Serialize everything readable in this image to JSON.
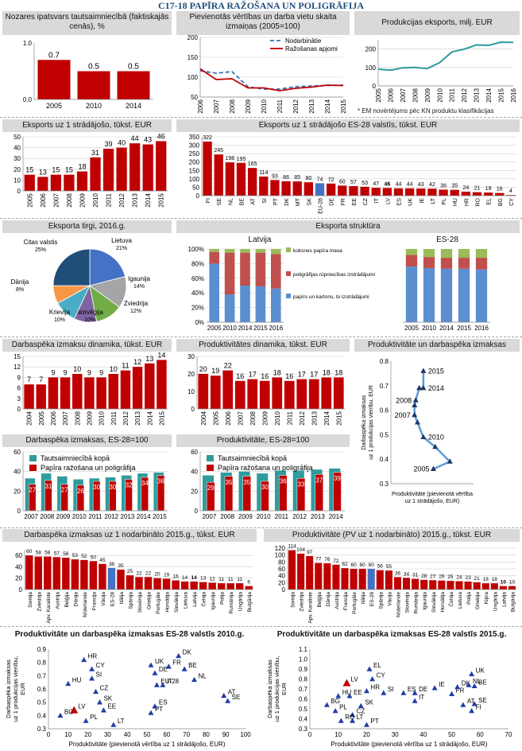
{
  "page_title": "C17-18 PAPĪRA RAŽOŠANA UN POLIGRĀFIJA",
  "colors": {
    "red": "#C00000",
    "green": "#4F7A28",
    "blue": "#4472C4",
    "teal": "#2E9C9C",
    "lightblue": "#5B9BD5",
    "gray": "#D9D9D9"
  },
  "p1": {
    "title": "Nozares ipatsvars tautsaimniecībā (faktiskajās cenās), %"
  },
  "p2": {
    "title": "Pievienotās vērtības un darba vietu skaita izmaiņas (2005=100)",
    "legend": [
      "Nodarbinātie",
      "Ražošanas apjomi"
    ]
  },
  "p3": {
    "title": "Produkcijas eksports, milj. EUR",
    "note": "* EM novērtējums pēc KN produktu klasifikācijas"
  },
  "p4": {
    "title": "Eksports uz 1 strādājošo, tūkst. EUR"
  },
  "p5": {
    "title": "Eksports uz 1 strādājošo ES-28 valstīs, tūkst. EUR"
  },
  "p6": {
    "title": "Eksporta tirgi, 2016.g."
  },
  "p7": {
    "title": "Eksporta struktūra",
    "sub_left": "Latvija",
    "sub_right": "ES-28",
    "legend": [
      "koksnes papīra masa",
      "poligrāfijas rūpniecības izstrādājumi",
      "papīrs un kartons, to izstrādājumi"
    ]
  },
  "p8": {
    "title": "Darbaspēka izmaksu dinamika, tūkst. EUR"
  },
  "p9": {
    "title": "Produktivitātes dinamika, tūkst. EUR"
  },
  "p10": {
    "title": "Produktivitāte un darbaspēka izmaksas"
  },
  "p11": {
    "title": "Darbaspēka izmaksas, ES-28=100",
    "legend": [
      "Tautsaimniecībā kopā",
      "Papīra ražošana un poligrāfija"
    ]
  },
  "p12": {
    "title": "Produktivitāte, ES-28=100",
    "legend": [
      "Tautsaimniecībā kopā",
      "Papīra ražošana un poligrāfija"
    ]
  },
  "p13": {
    "title": "Darbaspēka izmaksas uz 1 nodarbināto 2015.g., tūkst. EUR"
  },
  "p14": {
    "title": "Produktivitāte (PV uz 1 nodarbināto) 2015.g., tūkst. EUR"
  },
  "p15": {
    "title": "Produktivitāte un darbaspēka izmaksas ES-28 valstīs 2010.g."
  },
  "p16": {
    "title": "Produktivitāte un darbaspēka izmaksas ES-28 valstīs 2015.g."
  },
  "chart_data": [
    {
      "id": "share",
      "type": "bar",
      "categories": [
        "2005",
        "2010",
        "2014"
      ],
      "values": [
        0.7,
        0.5,
        0.5
      ],
      "ylim": [
        0,
        1
      ],
      "yticks": [
        0,
        1
      ],
      "yticklabels": [
        "0.0",
        "1.0"
      ]
    },
    {
      "id": "index",
      "type": "line",
      "x": [
        "2006",
        "2007",
        "2008",
        "2009",
        "2010",
        "2011",
        "2012",
        "2013",
        "2014",
        "2015"
      ],
      "series": [
        {
          "name": "Nodarbinātie",
          "values": [
            116,
            110,
            114,
            76,
            70,
            70,
            76,
            78,
            79,
            80
          ]
        },
        {
          "name": "Ražošanas apjomi",
          "values": [
            121,
            94,
            96,
            73,
            73,
            66,
            72,
            75,
            80,
            79
          ]
        }
      ],
      "ylim": [
        50,
        200
      ],
      "yticks": [
        50,
        100,
        150,
        200
      ]
    },
    {
      "id": "export",
      "type": "line",
      "x": [
        "2005",
        "2006",
        "2007",
        "2008",
        "2009",
        "2010",
        "2011",
        "2012",
        "2013",
        "2014",
        "2015",
        "2016"
      ],
      "series": [
        {
          "values": [
            91,
            85,
            98,
            100,
            94,
            126,
            184,
            199,
            222,
            220,
            237,
            236
          ]
        }
      ],
      "ylim": [
        0,
        250
      ],
      "yticks": [
        0,
        100,
        200
      ]
    },
    {
      "id": "exp_worker",
      "type": "bar",
      "categories": [
        "2005",
        "2006",
        "2007",
        "2008",
        "2009",
        "2010",
        "2011",
        "2012",
        "2013",
        "2014",
        "2015"
      ],
      "values": [
        15,
        13,
        15,
        15,
        18,
        31,
        39,
        40,
        44,
        43,
        46
      ],
      "ylim": [
        0,
        50
      ],
      "yticks": [
        0,
        10,
        20,
        30,
        40,
        50
      ]
    },
    {
      "id": "exp_eu",
      "type": "bar",
      "categories": [
        "FI",
        "SE",
        "NL",
        "BE",
        "AT",
        "SI",
        "PT",
        "DK",
        "MT",
        "SK",
        "EU-28",
        "DE",
        "FR",
        "EE",
        "CZ",
        "IT",
        "LV",
        "ES",
        "UK",
        "IE",
        "LT",
        "PL",
        "HU",
        "HR",
        "RO",
        "EL",
        "BG",
        "CY"
      ],
      "values": [
        322,
        245,
        198,
        195,
        165,
        114,
        93,
        86,
        85,
        80,
        74,
        72,
        60,
        57,
        53,
        47,
        46,
        44,
        44,
        43,
        42,
        36,
        35,
        24,
        21,
        19,
        16,
        4
      ],
      "ylim": [
        0,
        350
      ],
      "yticks": [
        0,
        50,
        100,
        150,
        200,
        250,
        300,
        350
      ],
      "highlight": {
        "EU-28": "blue",
        "LV": "red"
      }
    },
    {
      "id": "markets",
      "type": "pie",
      "labels": [
        "Lietuva",
        "Igaunija",
        "Zviedrija",
        "Norvēģija",
        "Krievija",
        "Dānija",
        "Citas valstis"
      ],
      "values": [
        21,
        14,
        12,
        10,
        10,
        8,
        25
      ],
      "value_labels": [
        "21%",
        "14%",
        "12%",
        "10%",
        "10%",
        "8%",
        "25%"
      ],
      "colors": [
        "#4472C4",
        "#A5A5A5",
        "#70AD47",
        "#8064A2",
        "#4BACC6",
        "#F79646",
        "#1F4E79"
      ]
    },
    {
      "id": "struct_lv",
      "type": "bar",
      "stacked": true,
      "categories": [
        "2005",
        "2010",
        "2014",
        "2015",
        "2016"
      ],
      "series": [
        {
          "name": "papīrs un kartons, to izstrādājumi",
          "values": [
            80,
            38,
            50,
            49,
            46
          ]
        },
        {
          "name": "poligrāfijas rūpniecības izstrādājumi",
          "values": [
            16,
            57,
            45,
            46,
            47
          ]
        },
        {
          "name": "koksnes papīra masa",
          "values": [
            4,
            5,
            5,
            5,
            7
          ]
        }
      ],
      "ylim": [
        0,
        100
      ],
      "yticks": [
        "0%",
        "20%",
        "40%",
        "60%",
        "80%",
        "100%"
      ]
    },
    {
      "id": "struct_eu",
      "type": "bar",
      "stacked": true,
      "categories": [
        "2005",
        "2010",
        "2014",
        "2015",
        "2016"
      ],
      "series": [
        {
          "name": "papīrs un kartons, to izstrādājumi",
          "values": [
            76,
            74,
            73,
            73,
            72
          ]
        },
        {
          "name": "poligrāfijas rūpniecības izstrādājumi",
          "values": [
            16,
            15,
            15,
            15,
            16
          ]
        },
        {
          "name": "koksnes papīra masa",
          "values": [
            8,
            11,
            12,
            12,
            12
          ]
        }
      ],
      "ylim": [
        0,
        100
      ]
    },
    {
      "id": "labour",
      "type": "bar",
      "categories": [
        "2004",
        "2005",
        "2006",
        "2007",
        "2008",
        "2009",
        "2010",
        "2011",
        "2012",
        "2013",
        "2014",
        "2015"
      ],
      "values": [
        7,
        7,
        9,
        9,
        10,
        9,
        9,
        10,
        11,
        12,
        13,
        14
      ],
      "ylim": [
        0,
        15
      ],
      "yticks": [
        0,
        3,
        6,
        9,
        12,
        15
      ]
    },
    {
      "id": "product",
      "type": "bar",
      "categories": [
        "2004",
        "2005",
        "2006",
        "2007",
        "2008",
        "2009",
        "2010",
        "2011",
        "2012",
        "2013",
        "2014",
        "2015"
      ],
      "values": [
        20,
        19,
        22,
        16,
        17,
        16,
        18,
        16,
        17,
        17,
        18,
        18
      ],
      "ylim": [
        0,
        30
      ],
      "yticks": [
        0,
        10,
        20,
        30
      ]
    },
    {
      "id": "prod_labour",
      "type": "scatter",
      "xlabel": "Produktivitāte (pievienotā vērtība uz 1 strādājošo, EUR)",
      "ylabel": "Darbaspēka izmaksas uz 1 produkcijas vienību, EUR",
      "points": [
        {
          "x": 19.2,
          "y": 0.36,
          "label": "2005"
        },
        {
          "x": 22,
          "y": 0.39
        },
        {
          "x": 19.5,
          "y": 0.45
        },
        {
          "x": 17.5,
          "y": 0.49,
          "label": "2010"
        },
        {
          "x": 16.5,
          "y": 0.55
        },
        {
          "x": 16,
          "y": 0.58,
          "label": "2007"
        },
        {
          "x": 16,
          "y": 0.62
        },
        {
          "x": 16.2,
          "y": 0.64,
          "label": "2008"
        },
        {
          "x": 16.8,
          "y": 0.69
        },
        {
          "x": 17.5,
          "y": 0.69,
          "label": "2014"
        },
        {
          "x": 17.5,
          "y": 0.76,
          "label": "2015"
        }
      ],
      "xlim": [
        12,
        26
      ],
      "ylim": [
        0.3,
        0.8
      ],
      "yticks": [
        0.3,
        0.4,
        0.5,
        0.6,
        0.7,
        0.8
      ]
    },
    {
      "id": "labour_idx",
      "type": "bar",
      "categories": [
        "2007",
        "2008",
        "2009",
        "2010",
        "2011",
        "2012",
        "2013",
        "2014",
        "2015"
      ],
      "series": [
        {
          "name": "Tautsaimniecībā kopā",
          "values": [
            33,
            38,
            35,
            32,
            33,
            34,
            36,
            38,
            39
          ]
        },
        {
          "name": "Papīra ražošana un poligrāfija",
          "values": [
            27,
            31,
            27,
            26,
            30,
            30,
            32,
            34,
            36
          ]
        }
      ],
      "ylim": [
        0,
        60
      ],
      "yticks": [
        0,
        20,
        40,
        60
      ]
    },
    {
      "id": "prod_idx",
      "type": "bar",
      "categories": [
        "2007",
        "2008",
        "2009",
        "2010",
        "2011",
        "2012",
        "2013",
        "2014"
      ],
      "series": [
        {
          "name": "Tautsaimniecībā kopā",
          "values": [
            36,
            39,
            40,
            38,
            41,
            41,
            42,
            43
          ]
        },
        {
          "name": "Papīra ražošana un poligrāfija",
          "values": [
            29,
            35,
            35,
            30,
            36,
            33,
            37,
            39
          ]
        }
      ],
      "ylim": [
        0,
        60
      ],
      "yticks": [
        0,
        20,
        40,
        60
      ]
    },
    {
      "id": "labour_eu",
      "type": "bar",
      "categories": [
        "Somija",
        "Zviedrija",
        "Apv. Karaliste",
        "Austrija",
        "Beļģija",
        "Dānija",
        "Nīderlande",
        "Francija",
        "Vācija",
        "ES-28",
        "Itālija",
        "Spānija",
        "Slovēnija",
        "Grieķija",
        "Portugāle",
        "Horvātija",
        "Slovākija",
        "Lietuva",
        "Latvija",
        "Čehija",
        "Igaunija",
        "Polija",
        "Rumānija",
        "Ungārija",
        "Bulgārija"
      ],
      "values": [
        60,
        58,
        58,
        57,
        56,
        53,
        52,
        50,
        45,
        38,
        35,
        25,
        22,
        22,
        20,
        19,
        16,
        14,
        14,
        13,
        12,
        11,
        11,
        11,
        6
      ],
      "ylim": [
        0,
        70
      ],
      "highlight": {
        "ES-28": "blue",
        "Latvija": "red"
      }
    },
    {
      "id": "prod_eu",
      "type": "bar",
      "categories": [
        "Somija",
        "Zviedrija",
        "Apv. Karaliste",
        "Beļģija",
        "Dānija",
        "Austrija",
        "Francija",
        "Portugāle",
        "Itālija",
        "ES-28",
        "Spānija",
        "Vācija",
        "Nīderlande",
        "Slovēnija",
        "Rumānija",
        "Igaunija",
        "Slovākija",
        "Horvātija",
        "Čehija",
        "Lietuva",
        "Polija",
        "Grieķija",
        "Kipra",
        "Ungārija",
        "Latvija",
        "Bulgārija"
      ],
      "values": [
        114,
        104,
        97,
        77,
        76,
        72,
        62,
        60,
        60,
        60,
        56,
        55,
        36,
        34,
        31,
        28,
        27,
        26,
        25,
        24,
        23,
        21,
        18,
        18,
        10,
        10
      ],
      "ylim": [
        0,
        120
      ],
      "highlight": {
        "ES-28": "blue",
        "Latvija": "red"
      }
    },
    {
      "id": "scatter2010",
      "type": "scatter",
      "xlabel": "Produktivitāte (pievienotā vērtība uz 1 strādājošo, EUR)",
      "ylabel": "Darbaspēka izmaksas uz 1 produkcijas vienību, EUR",
      "xlim": [
        0,
        100
      ],
      "ylim": [
        0.3,
        0.9
      ],
      "xticks": [
        0,
        10,
        20,
        30,
        40,
        50,
        60,
        70,
        80,
        90,
        100
      ],
      "yticks": [
        0.3,
        0.4,
        0.5,
        0.6,
        0.7,
        0.8,
        0.9
      ],
      "points": [
        {
          "x": 18,
          "y": 0.82,
          "label": "HR"
        },
        {
          "x": 22,
          "y": 0.75,
          "label": "CY"
        },
        {
          "x": 10,
          "y": 0.64,
          "label": "HU"
        },
        {
          "x": 22,
          "y": 0.68,
          "label": "SI"
        },
        {
          "x": 24,
          "y": 0.58,
          "label": "CZ"
        },
        {
          "x": 26,
          "y": 0.5,
          "label": "SK"
        },
        {
          "x": 28,
          "y": 0.44,
          "label": "EE"
        },
        {
          "x": 6,
          "y": 0.4,
          "label": "BG"
        },
        {
          "x": 13,
          "y": 0.44,
          "label": "LV",
          "highlight": true
        },
        {
          "x": 19,
          "y": 0.36,
          "label": "PL"
        },
        {
          "x": 33,
          "y": 0.33,
          "label": "LT"
        },
        {
          "x": 52,
          "y": 0.78,
          "label": "UK"
        },
        {
          "x": 54,
          "y": 0.72,
          "label": "DE"
        },
        {
          "x": 55,
          "y": 0.63,
          "label": "EU-28"
        },
        {
          "x": 58,
          "y": 0.63,
          "label": "IT"
        },
        {
          "x": 61,
          "y": 0.77,
          "label": "FR"
        },
        {
          "x": 66,
          "y": 0.85,
          "label": "DK"
        },
        {
          "x": 69,
          "y": 0.75,
          "label": "BE"
        },
        {
          "x": 74,
          "y": 0.67,
          "label": "NL"
        },
        {
          "x": 52,
          "y": 0.42,
          "label": "PT"
        },
        {
          "x": 54,
          "y": 0.47,
          "label": "ES"
        },
        {
          "x": 89,
          "y": 0.55,
          "label": "AT"
        },
        {
          "x": 91,
          "y": 0.51,
          "label": "SE"
        }
      ]
    },
    {
      "id": "scatter2015",
      "type": "scatter",
      "xlabel": "Produktivitāte (pievienotā vērtība uz 1 strādājošo, EUR)",
      "ylabel": "Darbaspēka izmaksas uz 1 produkcijas vienību, EUR",
      "xlim": [
        0,
        70
      ],
      "ylim": [
        0.3,
        1.1
      ],
      "xticks": [
        0,
        10,
        20,
        30,
        40,
        50,
        60,
        70
      ],
      "yticks": [
        0.3,
        0.4,
        0.5,
        0.6,
        0.7,
        0.8,
        0.9,
        1.0,
        1.1
      ],
      "points": [
        {
          "x": 13,
          "y": 0.76,
          "label": "LV",
          "highlight": true
        },
        {
          "x": 21,
          "y": 0.9,
          "label": "EL"
        },
        {
          "x": 22,
          "y": 0.8,
          "label": "CY"
        },
        {
          "x": 20,
          "y": 0.68,
          "label": "HR"
        },
        {
          "x": 10,
          "y": 0.63,
          "label": "HU"
        },
        {
          "x": 14,
          "y": 0.63,
          "label": "EE"
        },
        {
          "x": 18,
          "y": 0.53,
          "label": "SK"
        },
        {
          "x": 6,
          "y": 0.54,
          "label": "BG"
        },
        {
          "x": 9,
          "y": 0.48,
          "label": "PL"
        },
        {
          "x": 15,
          "y": 0.44,
          "label": "CZ"
        },
        {
          "x": 15,
          "y": 0.38,
          "label": "LT"
        },
        {
          "x": 11,
          "y": 0.38,
          "label": "RO"
        },
        {
          "x": 20,
          "y": 0.34,
          "label": "PT"
        },
        {
          "x": 26,
          "y": 0.66,
          "label": "SI"
        },
        {
          "x": 33,
          "y": 0.66,
          "label": "ES"
        },
        {
          "x": 37,
          "y": 0.66,
          "label": "DE"
        },
        {
          "x": 37,
          "y": 0.58,
          "label": "IT"
        },
        {
          "x": 44,
          "y": 0.71,
          "label": "IE"
        },
        {
          "x": 50,
          "y": 0.65,
          "label": "FR"
        },
        {
          "x": 52,
          "y": 0.72,
          "label": "DK"
        },
        {
          "x": 56,
          "y": 0.74,
          "label": "NL"
        },
        {
          "x": 57,
          "y": 0.85,
          "label": "UK"
        },
        {
          "x": 58,
          "y": 0.73,
          "label": "BE"
        },
        {
          "x": 54,
          "y": 0.54,
          "label": "AT"
        },
        {
          "x": 58,
          "y": 0.55,
          "label": "SE"
        },
        {
          "x": 57,
          "y": 0.48,
          "label": "FI"
        }
      ]
    }
  ]
}
